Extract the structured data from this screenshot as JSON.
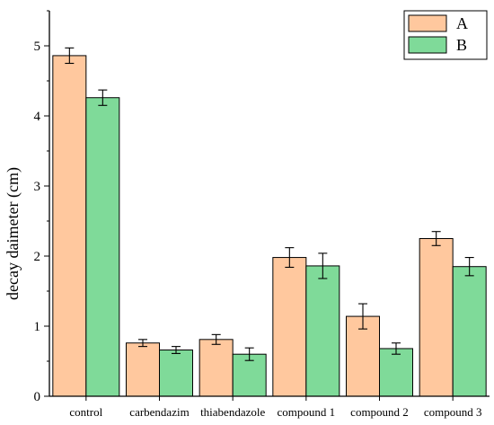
{
  "chart_data": {
    "type": "bar",
    "title": "",
    "xlabel": "",
    "ylabel": "decay daimeter (cm)",
    "ylim": [
      0,
      5.5
    ],
    "yticks": [
      0,
      1,
      2,
      3,
      4,
      5
    ],
    "grid": false,
    "legend_position": "top-right",
    "categories": [
      "control",
      "carbendazim",
      "thiabendazole",
      "compound 1",
      "compound 2",
      "compound 3"
    ],
    "series": [
      {
        "name": "A",
        "color": "#FFC89E",
        "values": [
          4.86,
          0.76,
          0.81,
          1.98,
          1.14,
          2.25
        ],
        "errors": [
          0.11,
          0.05,
          0.07,
          0.14,
          0.18,
          0.1
        ]
      },
      {
        "name": "B",
        "color": "#7FDA99",
        "values": [
          4.26,
          0.66,
          0.6,
          1.86,
          0.68,
          1.85
        ],
        "errors": [
          0.11,
          0.05,
          0.09,
          0.18,
          0.08,
          0.13
        ]
      }
    ]
  }
}
